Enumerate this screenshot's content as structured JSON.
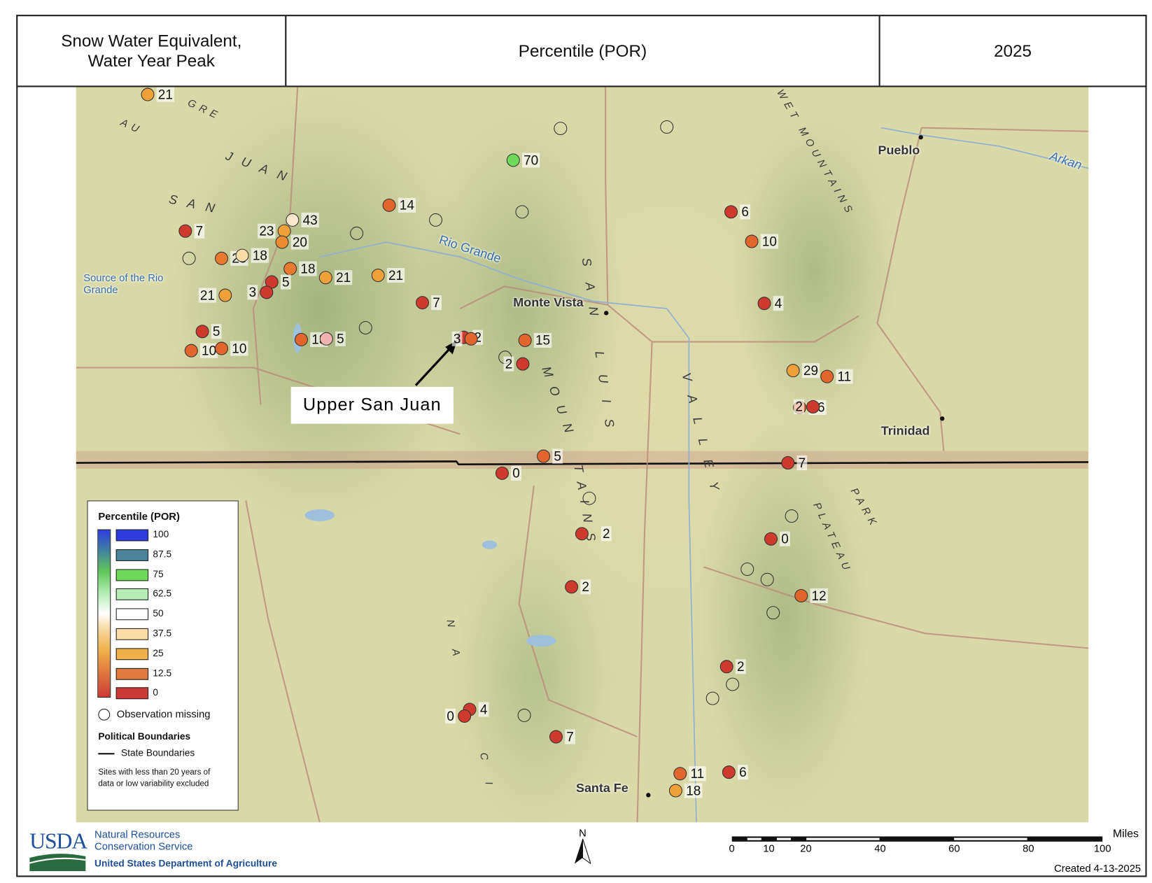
{
  "header": {
    "title": "Snow Water Equivalent,\nWater Year Peak",
    "title_line1": "Snow Water Equivalent,",
    "title_line2": "Water Year Peak",
    "metric": "Percentile (POR)",
    "year": "2025"
  },
  "callout": {
    "label": "Upper San Juan"
  },
  "places": [
    {
      "name": "Pueblo"
    },
    {
      "name": "Monte Vista"
    },
    {
      "name": "Trinidad"
    },
    {
      "name": "Santa Fe"
    }
  ],
  "water_labels": [
    "Rio Grande",
    "Arkan",
    "Source of the Rio Grande"
  ],
  "terrain_labels": [
    "SAN",
    "JUAN",
    "MOUN",
    "TAINS",
    "SAN LUIS",
    "VALLEY",
    "WET MOUNTAINS",
    "PARK",
    "PLATEAU",
    "GRE",
    "AU",
    "NA",
    "CI"
  ],
  "colors": {
    "p0": "#cf3a2e",
    "p12_5": "#e0662e",
    "p25": "#f0a03a",
    "p37_5": "#f8dca8",
    "p50": "#ffffff",
    "p62_5": "#b5edb5",
    "p75": "#6fd95a",
    "p87_5": "#4a8399",
    "p100": "#2f3de0",
    "near50": "#fbe8cc",
    "pink": "#f1b3b0"
  },
  "sites": [
    {
      "label": "21",
      "color": "#f0a03a"
    },
    {
      "label": "70",
      "color": "#6fd95a"
    },
    {
      "label": "",
      "color": null
    },
    {
      "label": "",
      "color": null
    },
    {
      "label": "14",
      "color": "#e0662e"
    },
    {
      "label": "",
      "color": null
    },
    {
      "label": "",
      "color": null
    },
    {
      "label": "",
      "color": null
    },
    {
      "label": "43",
      "color": "#fbe8cc"
    },
    {
      "label": "23",
      "color": "#f0a03a"
    },
    {
      "label": "20",
      "color": "#ec8a32"
    },
    {
      "label": "7",
      "color": "#cf3a2e"
    },
    {
      "label": "",
      "color": null
    },
    {
      "label": "25",
      "color": "#e87a30"
    },
    {
      "label": "18",
      "color": "#f8dca8"
    },
    {
      "label": "18",
      "color": "#e87a30"
    },
    {
      "label": "21",
      "color": "#f0a03a"
    },
    {
      "label": "21",
      "color": "#f0a03a"
    },
    {
      "label": "5",
      "color": "#cf3a2e"
    },
    {
      "label": "3",
      "color": "#cf3a2e"
    },
    {
      "label": "21",
      "color": "#f0a03a"
    },
    {
      "label": "7",
      "color": "#cf3a2e"
    },
    {
      "label": "5",
      "color": "#cf3a2e"
    },
    {
      "label": "10",
      "color": "#e0662e"
    },
    {
      "label": "10",
      "color": "#e0662e"
    },
    {
      "label": "13",
      "color": "#e0662e"
    },
    {
      "label": "5",
      "color": "#f1b3b0"
    },
    {
      "label": "",
      "color": null
    },
    {
      "label": "2",
      "color": "#cf3a2e"
    },
    {
      "label": "3",
      "color": "#e0662e"
    },
    {
      "label": "15",
      "color": "#e0662e"
    },
    {
      "label": "",
      "color": null
    },
    {
      "label": "2",
      "color": "#cf3a2e"
    },
    {
      "label": "6",
      "color": "#cf3a2e"
    },
    {
      "label": "10",
      "color": "#e0662e"
    },
    {
      "label": "4",
      "color": "#cf3a2e"
    },
    {
      "label": "29",
      "color": "#f0a03a"
    },
    {
      "label": "11",
      "color": "#e0662e"
    },
    {
      "label": "16",
      "color": "#e0662e"
    },
    {
      "label": "2",
      "color": "#cf3a2e"
    },
    {
      "label": "5",
      "color": "#e0662e"
    },
    {
      "label": "0",
      "color": "#cf3a2e"
    },
    {
      "label": "7",
      "color": "#cf3a2e"
    },
    {
      "label": "",
      "color": null
    },
    {
      "label": "",
      "color": null
    },
    {
      "label": "2",
      "color": "#cf3a2e"
    },
    {
      "label": "0",
      "color": "#cf3a2e"
    },
    {
      "label": "",
      "color": null
    },
    {
      "label": "",
      "color": null
    },
    {
      "label": "2",
      "color": "#cf3a2e"
    },
    {
      "label": "12",
      "color": "#e0662e"
    },
    {
      "label": "",
      "color": null
    },
    {
      "label": "2",
      "color": "#cf3a2e"
    },
    {
      "label": "",
      "color": null
    },
    {
      "label": "",
      "color": null
    },
    {
      "label": "4",
      "color": "#cf3a2e"
    },
    {
      "label": "0",
      "color": "#cf3a2e"
    },
    {
      "label": "",
      "color": null
    },
    {
      "label": "7",
      "color": "#cf3a2e"
    },
    {
      "label": "11",
      "color": "#e0662e"
    },
    {
      "label": "6",
      "color": "#cf3a2e"
    },
    {
      "label": "18",
      "color": "#f0a03a"
    }
  ],
  "legend": {
    "title": "Percentile (POR)",
    "classes": [
      {
        "label": "100",
        "color": "#2f3de0"
      },
      {
        "label": "87.5",
        "color": "#4a8399"
      },
      {
        "label": "75",
        "color": "#6fd95a"
      },
      {
        "label": "62.5",
        "color": "#b5edb5"
      },
      {
        "label": "50",
        "color": "#ffffff"
      },
      {
        "label": "37.5",
        "color": "#f8dca8"
      },
      {
        "label": "25",
        "color": "#f1b14a"
      },
      {
        "label": "12.5",
        "color": "#e07a3e"
      },
      {
        "label": "0",
        "color": "#cd3a35"
      }
    ],
    "missing": "Observation missing",
    "boundaries_title": "Political Boundaries",
    "state_boundaries": "State Boundaries",
    "note_line1": "Sites with less than 20 years of",
    "note_line2": "data or low variability excluded"
  },
  "footer": {
    "usda": "USDA",
    "agency_line1": "Natural Resources",
    "agency_line2": "Conservation Service",
    "department": "United States Department of Agriculture",
    "north": "N",
    "scale_ticks": [
      "0",
      "10",
      "20",
      "40",
      "60",
      "80",
      "100"
    ],
    "scale_unit": "Miles",
    "created": "Created 4-13-2025"
  }
}
